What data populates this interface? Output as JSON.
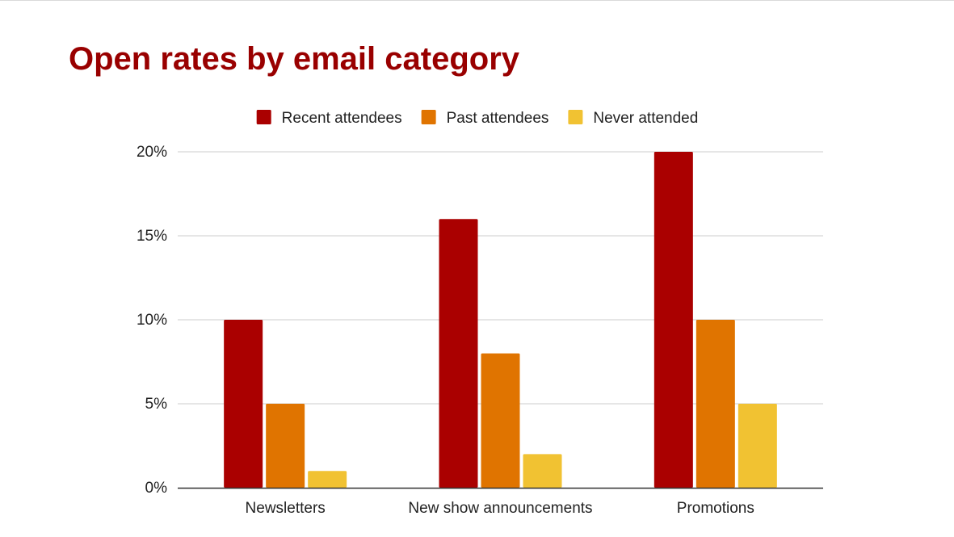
{
  "slide": {
    "title": "Open rates by email category"
  },
  "colors": {
    "title": "#990000",
    "gridline": "#cccccc",
    "axis": "#333333",
    "text": "#222222"
  },
  "chart_data": {
    "type": "bar",
    "title": "",
    "xlabel": "",
    "ylabel": "",
    "categories": [
      "Newsletters",
      "New show announcements",
      "Promotions"
    ],
    "series": [
      {
        "name": "Recent attendees",
        "color": "#aa0000",
        "values": [
          10,
          16,
          20
        ]
      },
      {
        "name": "Past attendees",
        "color": "#e07400",
        "values": [
          5,
          8,
          10
        ]
      },
      {
        "name": "Never attended",
        "color": "#f1c232",
        "values": [
          1,
          2,
          5
        ]
      }
    ],
    "ylim": [
      0,
      20
    ],
    "yticks": [
      0,
      5,
      10,
      15,
      20
    ],
    "ytick_labels": [
      "0%",
      "5%",
      "10%",
      "15%",
      "20%"
    ],
    "grid": true,
    "legend": "top-center"
  }
}
